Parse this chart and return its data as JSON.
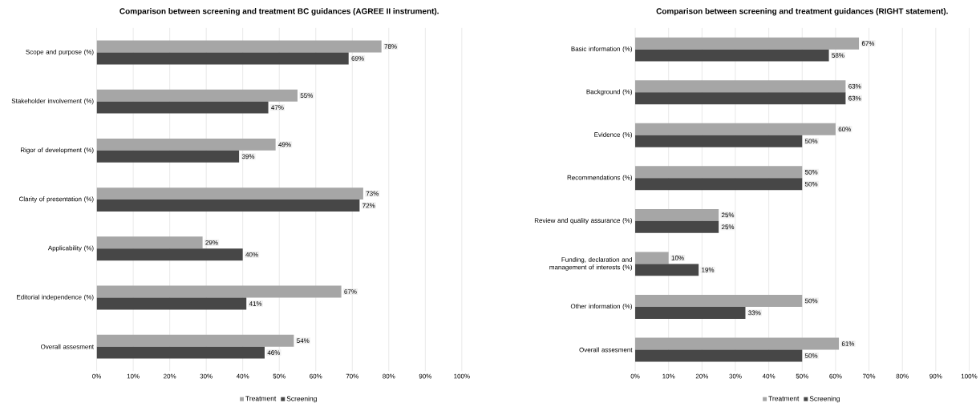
{
  "chart_data": [
    {
      "type": "bar",
      "orientation": "horizontal",
      "title": "Comparison between screening and treatment BC guidances (AGREE II instrument).",
      "categories": [
        "Scope and purpose (%)",
        "Stakeholder involvement (%)",
        "Rigor of development (%)",
        "Clarity of presentation (%)",
        "Applicability (%)",
        "Editorial independence (%)",
        "Overall assesment"
      ],
      "series": [
        {
          "name": "Treatment",
          "color": "#a6a6a6",
          "values": [
            78,
            55,
            49,
            73,
            29,
            67,
            54
          ],
          "value_labels": [
            "78%",
            "55%",
            "49%",
            "73%",
            "29%",
            "67%",
            "54%"
          ]
        },
        {
          "name": "Screening",
          "color": "#474747",
          "values": [
            69,
            47,
            39,
            72,
            40,
            41,
            46
          ],
          "value_labels": [
            "69%",
            "47%",
            "39%",
            "72%",
            "40%",
            "41%",
            "46%"
          ]
        }
      ],
      "xlim": [
        0,
        100
      ],
      "xticks": [
        {
          "value": 0,
          "label": "0%"
        },
        {
          "value": 10,
          "label": "10%"
        },
        {
          "value": 20,
          "label": "20%"
        },
        {
          "value": 30,
          "label": "30%"
        },
        {
          "value": 40,
          "label": "40%"
        },
        {
          "value": 50,
          "label": "50%"
        },
        {
          "value": 60,
          "label": "60%"
        },
        {
          "value": 70,
          "label": "70%"
        },
        {
          "value": 80,
          "label": "80%"
        },
        {
          "value": 90,
          "label": "90%"
        },
        {
          "value": 100,
          "label": "100%"
        }
      ],
      "grid": "x",
      "legend": "bottom"
    },
    {
      "type": "bar",
      "orientation": "horizontal",
      "title": "Comparison between screening and treatment guidances (RIGHT statement).",
      "categories": [
        "Basic information (%)",
        "Background (%)",
        "Evidence (%)",
        "Recommendations (%)",
        "Review and quality assurance (%)",
        "Funding, declaration and management of interests (%)",
        "Other information (%)",
        "Overall assesment"
      ],
      "series": [
        {
          "name": "Treatment",
          "color": "#a6a6a6",
          "values": [
            67,
            63,
            60,
            50,
            25,
            10,
            50,
            61
          ],
          "value_labels": [
            "67%",
            "63%",
            "60%",
            "50%",
            "25%",
            "10%",
            "50%",
            "61%"
          ]
        },
        {
          "name": "Screening",
          "color": "#474747",
          "values": [
            58,
            63,
            50,
            50,
            25,
            19,
            33,
            50
          ],
          "value_labels": [
            "58%",
            "63%",
            "50%",
            "50%",
            "25%",
            "19%",
            "33%",
            "50%"
          ]
        }
      ],
      "xlim": [
        0,
        100
      ],
      "xticks": [
        {
          "value": 0,
          "label": "0%"
        },
        {
          "value": 10,
          "label": "10%"
        },
        {
          "value": 20,
          "label": "20%"
        },
        {
          "value": 30,
          "label": "30%"
        },
        {
          "value": 40,
          "label": "40%"
        },
        {
          "value": 50,
          "label": "50%"
        },
        {
          "value": 60,
          "label": "60%"
        },
        {
          "value": 70,
          "label": "70%"
        },
        {
          "value": 80,
          "label": "80%"
        },
        {
          "value": 90,
          "label": "90%"
        },
        {
          "value": 100,
          "label": "100%"
        }
      ],
      "grid": "x",
      "legend": "bottom"
    }
  ]
}
